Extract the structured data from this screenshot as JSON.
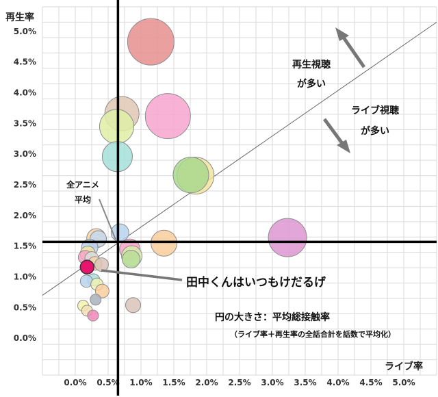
{
  "chart_data": {
    "type": "bubble-scatter",
    "ylabel": "再生率",
    "xlabel": "ライブ率",
    "xlim": [
      -0.005,
      0.055
    ],
    "ylim": [
      -0.006,
      0.054
    ],
    "x_ticks": [
      "0.0%",
      "0.5%",
      "1.0%",
      "1.5%",
      "2.0%",
      "2.5%",
      "3.0%",
      "3.5%",
      "4.0%",
      "4.5%",
      "5.0%"
    ],
    "x_tick_values": [
      0,
      0.005,
      0.01,
      0.015,
      0.02,
      0.025,
      0.03,
      0.035,
      0.04,
      0.045,
      0.05
    ],
    "y_ticks": [
      "0.0%",
      "0.5%",
      "1.0%",
      "1.5%",
      "2.0%",
      "2.5%",
      "3.0%",
      "3.5%",
      "4.0%",
      "4.5%",
      "5.0%"
    ],
    "y_tick_values": [
      0,
      0.005,
      0.01,
      0.015,
      0.02,
      0.025,
      0.03,
      0.035,
      0.04,
      0.045,
      0.05
    ],
    "grid": true,
    "average_x": 0.0065,
    "average_y": 0.0157,
    "diagonal_line": {
      "x1": -0.005,
      "y1": 0.007,
      "x2": 0.055,
      "y2": 0.0515
    },
    "annotations": {
      "avg_label_line1": "全アニメ",
      "avg_label_line2": "平均",
      "play_more_line1": "再生視聴",
      "play_more_line2": "が多い",
      "live_more_line1": "ライブ視聴",
      "live_more_line2": "が多い",
      "highlight_label": "田中くんはいつもけだるげ",
      "size_note_line1": "円の大きさ：平均総接触率",
      "size_note_line2": "（ライブ率＋再生率の全話合計を話数で平均化）"
    },
    "highlight": {
      "x": 0.0018,
      "y": 0.0116,
      "size": 10,
      "color": "#e8156f"
    },
    "points": [
      {
        "x": 0.0115,
        "y": 0.0483,
        "size": 34,
        "color": "#e88f8f"
      },
      {
        "x": 0.0141,
        "y": 0.0362,
        "size": 33,
        "color": "#f7a5cf"
      },
      {
        "x": 0.0071,
        "y": 0.0366,
        "size": 25,
        "color": "#e0c7b4"
      },
      {
        "x": 0.0063,
        "y": 0.0345,
        "size": 25,
        "color": "#dfeea6"
      },
      {
        "x": 0.0064,
        "y": 0.0296,
        "size": 22,
        "color": "#a6e0db"
      },
      {
        "x": 0.0183,
        "y": 0.0265,
        "size": 27,
        "color": "#f2e49e"
      },
      {
        "x": 0.0176,
        "y": 0.0266,
        "size": 26,
        "color": "#a9d88e"
      },
      {
        "x": 0.0323,
        "y": 0.0164,
        "size": 28,
        "color": "#dd97d2"
      },
      {
        "x": 0.0135,
        "y": 0.0155,
        "size": 19,
        "color": "#f9ce9c"
      },
      {
        "x": 0.0068,
        "y": 0.0172,
        "size": 13,
        "color": "#b9d3ee"
      },
      {
        "x": 0.0032,
        "y": 0.0163,
        "size": 14,
        "color": "#f5d6a6"
      },
      {
        "x": 0.0035,
        "y": 0.0162,
        "size": 12,
        "color": "#c6d7ee"
      },
      {
        "x": 0.0083,
        "y": 0.0145,
        "size": 15,
        "color": "#f7a5c8"
      },
      {
        "x": 0.0086,
        "y": 0.0134,
        "size": 15,
        "color": "#d8ecac"
      },
      {
        "x": 0.0085,
        "y": 0.0129,
        "size": 13,
        "color": "#b8dd98"
      },
      {
        "x": 0.0022,
        "y": 0.0148,
        "size": 12,
        "color": "#b9d3ee"
      },
      {
        "x": 0.0019,
        "y": 0.0138,
        "size": 11,
        "color": "#f2e49e"
      },
      {
        "x": 0.0015,
        "y": 0.0132,
        "size": 10,
        "color": "#f7a5c8"
      },
      {
        "x": 0.0025,
        "y": 0.013,
        "size": 10,
        "color": "#dddddd"
      },
      {
        "x": 0.003,
        "y": 0.0122,
        "size": 10,
        "color": "#f5d6a6"
      },
      {
        "x": 0.004,
        "y": 0.012,
        "size": 10,
        "color": "#d9c4b8"
      },
      {
        "x": 0.0028,
        "y": 0.0095,
        "size": 9,
        "color": "#a6e0db"
      },
      {
        "x": 0.0017,
        "y": 0.0093,
        "size": 9,
        "color": "#b9d3ee"
      },
      {
        "x": 0.0033,
        "y": 0.0088,
        "size": 9,
        "color": "#eef2b4"
      },
      {
        "x": 0.0041,
        "y": 0.0077,
        "size": 10,
        "color": "#f9ce9c"
      },
      {
        "x": 0.0031,
        "y": 0.0063,
        "size": 8,
        "color": "#aab2bd"
      },
      {
        "x": 0.0012,
        "y": 0.0053,
        "size": 8,
        "color": "#f5f2a9"
      },
      {
        "x": 0.0018,
        "y": 0.0045,
        "size": 8,
        "color": "#f2e0b5"
      },
      {
        "x": 0.0027,
        "y": 0.0037,
        "size": 8,
        "color": "#ef89ba"
      },
      {
        "x": 0.0088,
        "y": 0.0054,
        "size": 11,
        "color": "#d9c4b8"
      }
    ]
  }
}
